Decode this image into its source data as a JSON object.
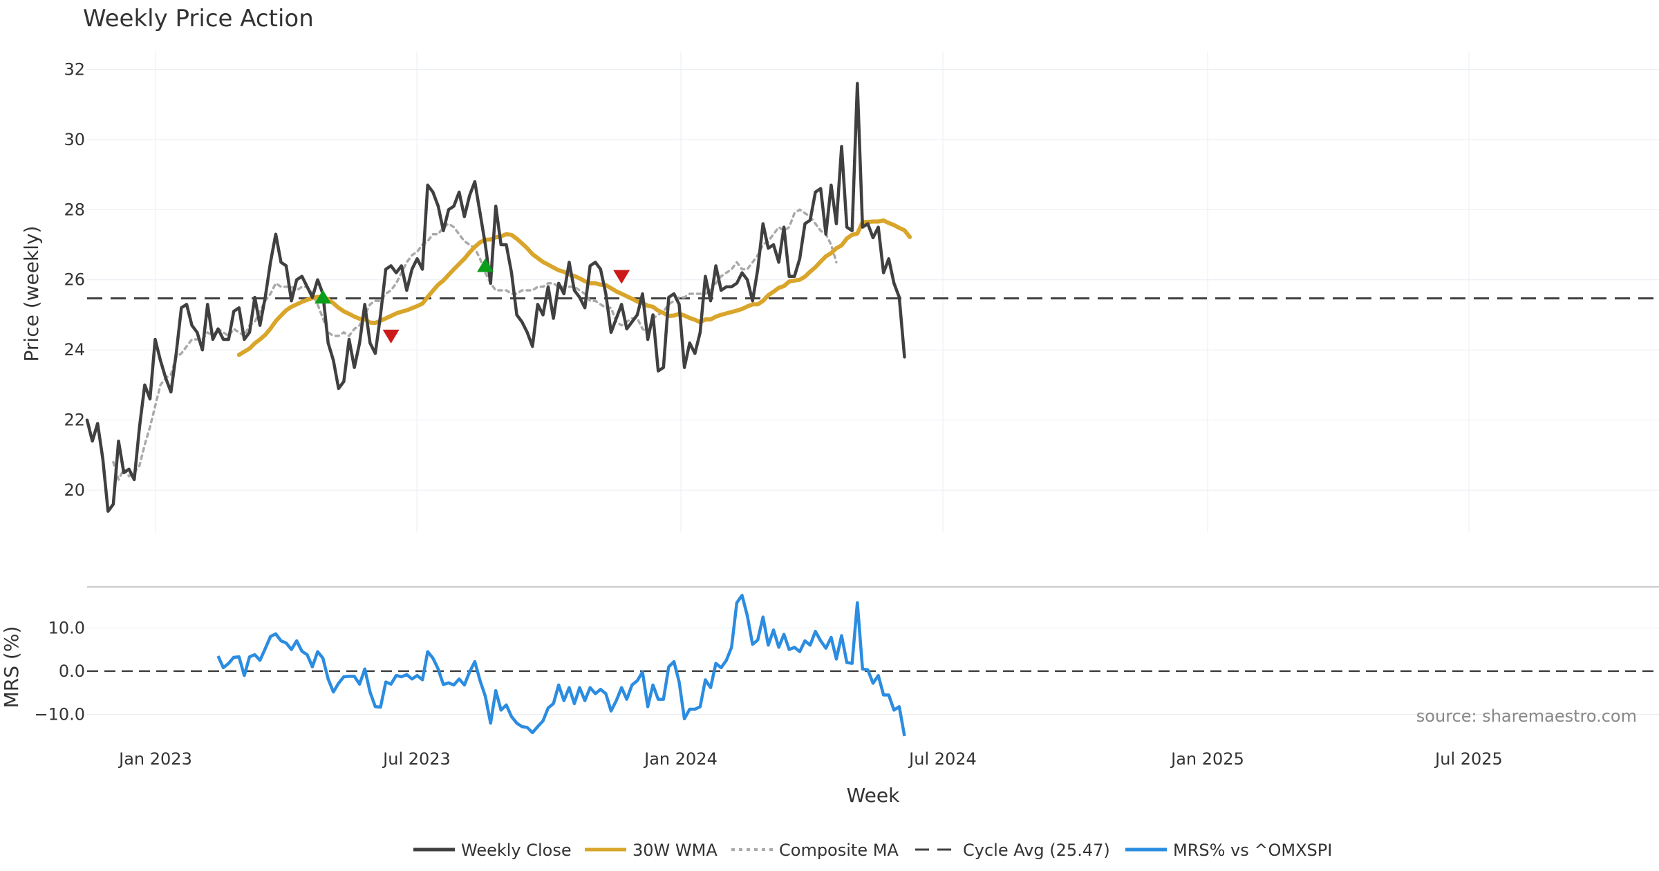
{
  "chart_data": {
    "type": "line",
    "title": "Weekly Price Action",
    "xlabel": "Week",
    "source": "source: sharemaestro.com",
    "x_ticks": [
      "Jan 2023",
      "Jul 2023",
      "Jan 2024",
      "Jul 2024",
      "Jan 2025",
      "Jul 2025"
    ],
    "price_panel": {
      "ylabel": "Price (weekly)",
      "ylim": [
        18.8,
        32.5
      ],
      "y_ticks": [
        20,
        22,
        24,
        26,
        28,
        30,
        32
      ],
      "cycle_avg": 25.47,
      "series": [
        {
          "name": "Weekly Close",
          "color": "#404040",
          "values": [
            22.0,
            21.4,
            21.9,
            20.9,
            19.4,
            19.6,
            21.4,
            20.5,
            20.6,
            20.3,
            21.8,
            23.0,
            22.6,
            24.3,
            23.7,
            23.2,
            22.8,
            23.9,
            25.2,
            25.3,
            24.7,
            24.5,
            24.0,
            25.3,
            24.3,
            24.6,
            24.3,
            24.3,
            25.1,
            25.2,
            24.3,
            24.5,
            25.5,
            24.7,
            25.5,
            26.5,
            27.3,
            26.5,
            26.4,
            25.4,
            26.0,
            26.1,
            25.8,
            25.5,
            26.0,
            25.6,
            24.2,
            23.7,
            22.9,
            23.1,
            24.3,
            23.5,
            24.2,
            25.3,
            24.2,
            23.9,
            25.0,
            26.3,
            26.4,
            26.2,
            26.4,
            25.7,
            26.3,
            26.6,
            26.3,
            28.7,
            28.5,
            28.1,
            27.4,
            28.0,
            28.1,
            28.5,
            27.8,
            28.4,
            28.8,
            27.9,
            27.0,
            25.9,
            28.1,
            27.0,
            27.0,
            26.2,
            25.0,
            24.8,
            24.5,
            24.1,
            25.3,
            25.0,
            25.8,
            24.9,
            25.9,
            25.6,
            26.5,
            25.7,
            25.5,
            25.2,
            26.4,
            26.5,
            26.3,
            25.6,
            24.5,
            24.9,
            25.3,
            24.6,
            24.8,
            25.0,
            25.6,
            24.3,
            25.0,
            23.4,
            23.5,
            25.5,
            25.6,
            25.3,
            23.5,
            24.2,
            23.9,
            24.5,
            26.1,
            25.4,
            26.4,
            25.7,
            25.8,
            25.8,
            25.9,
            26.2,
            26.0,
            25.4,
            26.3,
            27.6,
            26.9,
            27.0,
            26.5,
            27.5,
            26.1,
            26.1,
            26.6,
            27.6,
            27.7,
            28.5,
            28.6,
            27.3,
            28.7,
            27.6,
            29.8,
            27.5,
            27.4,
            31.6,
            27.5,
            27.6,
            27.2,
            27.5,
            26.2,
            26.6,
            25.9,
            25.5,
            23.8
          ]
        },
        {
          "name": "30W WMA",
          "color": "#d9a52a",
          "start_index": 29,
          "values": [
            23.86,
            23.95,
            24.04,
            24.19,
            24.3,
            24.43,
            24.61,
            24.82,
            24.98,
            25.13,
            25.23,
            25.3,
            25.37,
            25.43,
            25.48,
            25.51,
            25.52,
            25.44,
            25.33,
            25.2,
            25.1,
            25.03,
            24.95,
            24.89,
            24.87,
            24.78,
            24.77,
            24.83,
            24.9,
            24.97,
            25.04,
            25.09,
            25.13,
            25.19,
            25.25,
            25.32,
            25.51,
            25.69,
            25.86,
            25.98,
            26.14,
            26.3,
            26.45,
            26.6,
            26.78,
            26.94,
            27.07,
            27.14,
            27.15,
            27.21,
            27.24,
            27.3,
            27.28,
            27.17,
            27.04,
            26.9,
            26.73,
            26.62,
            26.51,
            26.43,
            26.35,
            26.27,
            26.23,
            26.15,
            26.11,
            26.04,
            25.96,
            25.9,
            25.9,
            25.86,
            25.85,
            25.76,
            25.67,
            25.6,
            25.53,
            25.46,
            25.38,
            25.34,
            25.26,
            25.23,
            25.12,
            25.05,
            24.97,
            24.98,
            25.03,
            24.98,
            24.91,
            24.86,
            24.79,
            24.87,
            24.87,
            24.95,
            25.0,
            25.04,
            25.08,
            25.12,
            25.17,
            25.24,
            25.3,
            25.3,
            25.4,
            25.56,
            25.66,
            25.77,
            25.82,
            25.95,
            25.98,
            26.0,
            26.09,
            26.23,
            26.36,
            26.52,
            26.67,
            26.76,
            26.9,
            26.98,
            27.18,
            27.28,
            27.32,
            27.64,
            27.65,
            27.66,
            27.66,
            27.69,
            27.62,
            27.56,
            27.48,
            27.41,
            27.22
          ]
        },
        {
          "name": "Composite MA",
          "color": "#aaaaaa",
          "dash": "dotted",
          "start_index": 5,
          "values": [
            20.8,
            20.3,
            20.6,
            20.4,
            20.5,
            20.7,
            21.3,
            21.8,
            22.4,
            23.0,
            23.2,
            23.3,
            23.8,
            23.9,
            24.1,
            24.3,
            24.3,
            24.3,
            24.5,
            24.4,
            24.6,
            24.5,
            24.4,
            24.6,
            24.5,
            24.4,
            24.7,
            24.8,
            25.1,
            25.4,
            25.6,
            25.9,
            25.8,
            25.8,
            25.8,
            25.7,
            25.8,
            25.8,
            25.6,
            25.3,
            24.9,
            24.5,
            24.4,
            24.4,
            24.5,
            24.4,
            24.6,
            24.7,
            25.0,
            25.3,
            25.4,
            25.4,
            25.6,
            25.7,
            25.9,
            26.2,
            26.5,
            26.7,
            26.8,
            27.0,
            27.1,
            27.3,
            27.3,
            27.5,
            27.6,
            27.5,
            27.3,
            27.1,
            27.0,
            26.9,
            26.6,
            26.2,
            25.9,
            25.7,
            25.7,
            25.7,
            25.6,
            25.6,
            25.7,
            25.7,
            25.7,
            25.8,
            25.8,
            25.9,
            25.9,
            25.8,
            25.8,
            25.8,
            25.8,
            25.7,
            25.6,
            25.4,
            25.4,
            25.3,
            25.2,
            25.2,
            24.8,
            24.7,
            24.8,
            24.9,
            24.9,
            24.6,
            24.5,
            24.9,
            25.0,
            25.1,
            25.3,
            25.4,
            25.5,
            25.5,
            25.6,
            25.6,
            25.6,
            25.6,
            25.7,
            25.9,
            26.1,
            26.2,
            26.3,
            26.5,
            26.3,
            26.3,
            26.5,
            26.7,
            27.0,
            27.1,
            27.3,
            27.5,
            27.4,
            27.5,
            27.9,
            28.0,
            27.9,
            27.8,
            27.6,
            27.4,
            27.3,
            27.0,
            26.5
          ]
        }
      ],
      "signals": [
        {
          "type": "buy",
          "index": 45,
          "value": 25.5,
          "color": "#0a9e1a"
        },
        {
          "type": "sell",
          "index": 58,
          "value": 24.4,
          "color": "#cc1a1a"
        },
        {
          "type": "buy",
          "index": 76,
          "value": 26.4,
          "color": "#0a9e1a"
        },
        {
          "type": "sell",
          "index": 102,
          "value": 26.1,
          "color": "#cc1a1a"
        }
      ]
    },
    "mrs_panel": {
      "ylabel": "MRS (%)",
      "ylim": [
        -15.5,
        18.5
      ],
      "y_ticks": [
        "10.0",
        "0.0",
        "−10.0"
      ],
      "y_tick_values": [
        10,
        0,
        -10
      ],
      "series": [
        {
          "name": "MRS% vs ^OMXSPI",
          "color": "#2b8ce0",
          "start_index": 25,
          "values": [
            3.5,
            0.8,
            1.8,
            3.2,
            3.3,
            -1.0,
            3.3,
            3.8,
            2.5,
            5.2,
            8.0,
            8.6,
            7.0,
            6.5,
            5.0,
            7.0,
            4.6,
            3.8,
            1.0,
            4.5,
            3.0,
            -1.8,
            -4.8,
            -2.8,
            -1.3,
            -1.2,
            -1.2,
            -3.0,
            0.5,
            -4.8,
            -8.2,
            -8.3,
            -2.5,
            -3.0,
            -1.0,
            -1.3,
            -0.8,
            -1.8,
            -1.0,
            -2.0,
            4.5,
            3.0,
            0.5,
            -3.1,
            -2.7,
            -3.2,
            -1.8,
            -3.2,
            -0.2,
            2.2,
            -2.2,
            -5.8,
            -12.0,
            -4.5,
            -9.0,
            -7.8,
            -10.5,
            -12.0,
            -12.8,
            -13.0,
            -14.2,
            -12.8,
            -11.5,
            -8.5,
            -7.5,
            -3.2,
            -6.8,
            -3.8,
            -7.5,
            -3.8,
            -6.8,
            -3.8,
            -5.2,
            -4.2,
            -5.2,
            -9.2,
            -6.8,
            -3.8,
            -6.5,
            -3.2,
            -2.2,
            -0.2,
            -8.2,
            -3.2,
            -6.5,
            -6.5,
            1.0,
            2.2,
            -2.5,
            -11.0,
            -8.8,
            -8.8,
            -8.2,
            -2.0,
            -3.8,
            1.8,
            0.8,
            2.5,
            5.5,
            15.8,
            17.5,
            12.8,
            6.2,
            7.2,
            12.5,
            6.0,
            9.5,
            5.5,
            8.5,
            5.0,
            5.5,
            4.5,
            7.0,
            6.0,
            9.2,
            7.0,
            5.3,
            7.8,
            2.8,
            8.2,
            2.0,
            1.8,
            15.8,
            0.5,
            0.3,
            -2.8,
            -1.0,
            -5.5,
            -5.5,
            -9.0,
            -8.2,
            -15.0
          ]
        }
      ]
    },
    "legend": [
      {
        "label": "Weekly Close",
        "color": "#404040",
        "style": "solid"
      },
      {
        "label": "30W WMA",
        "color": "#d9a52a",
        "style": "solid"
      },
      {
        "label": "Composite MA",
        "color": "#aaaaaa",
        "style": "dotted"
      },
      {
        "label": "Cycle Avg (25.47)",
        "color": "#404040",
        "style": "dashed"
      },
      {
        "label": "MRS% vs ^OMXSPI",
        "color": "#2b8ce0",
        "style": "solid"
      }
    ]
  }
}
